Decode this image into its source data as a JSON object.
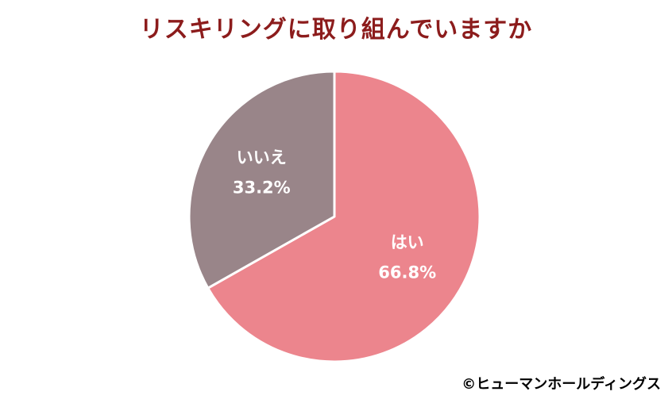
{
  "title": "リスキリングに取り組んでいますか",
  "credit": "©ヒューマンホールディングス",
  "colors": {
    "title": "#8c1c1c",
    "slice_yes": "#ec858d",
    "slice_no": "#998589",
    "separator": "#ffffff"
  },
  "chart_data": {
    "type": "pie",
    "title": "リスキリングに取り組んでいますか",
    "start": "12 o'clock",
    "direction": "clockwise",
    "slices": [
      {
        "label": "はい",
        "value": 66.8,
        "value_label": "66.8%",
        "color": "#ec858d"
      },
      {
        "label": "いいえ",
        "value": 33.2,
        "value_label": "33.2%",
        "color": "#998589"
      }
    ]
  }
}
